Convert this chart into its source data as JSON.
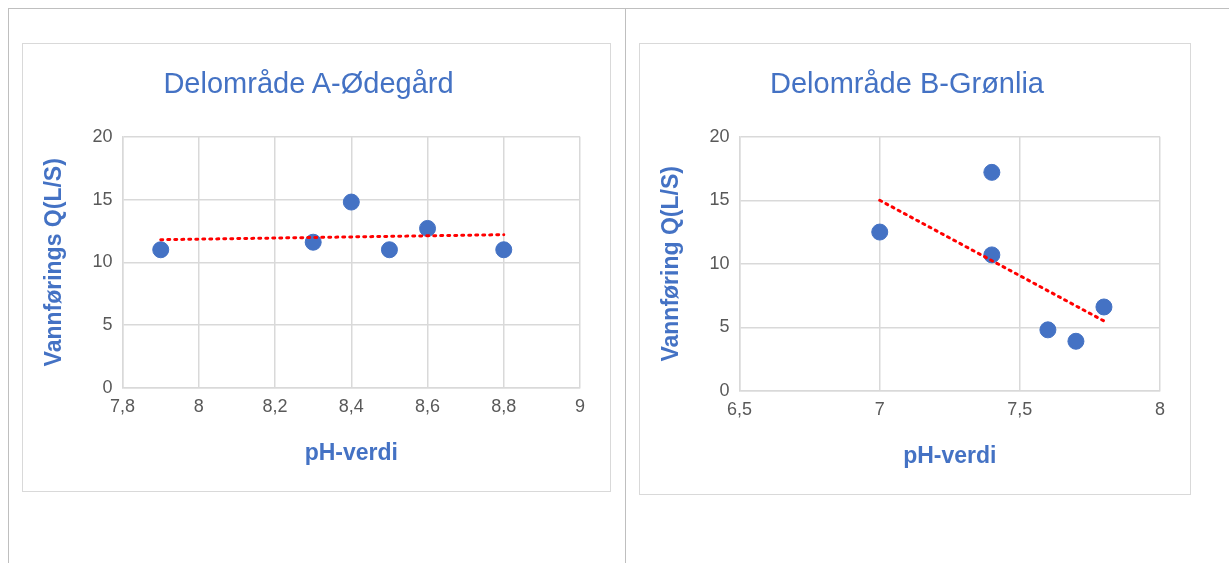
{
  "chart_data": [
    {
      "type": "scatter",
      "title": "Delområde A-Ødegård",
      "xlabel": "pH-verdi",
      "ylabel": "Vannførings Q(L/S)",
      "marker": "circle",
      "grid": true,
      "legend": false,
      "xlim": [
        7.8,
        9
      ],
      "xticks": [
        {
          "value": 7.8,
          "label": "7,8"
        },
        8,
        {
          "value": 8.2,
          "label": "8,2"
        },
        {
          "value": 8.4,
          "label": "8,4"
        },
        {
          "value": 8.6,
          "label": "8,6"
        },
        {
          "value": 8.8,
          "label": "8,8"
        },
        9
      ],
      "ylim": [
        0,
        20
      ],
      "yticks": [
        0,
        5,
        10,
        15,
        20
      ],
      "series": [
        {
          "color": "#4472c4",
          "x": [
            7.9,
            8.3,
            8.4,
            8.5,
            8.6,
            8.8
          ],
          "values": [
            11.0,
            11.6,
            14.8,
            11.0,
            12.7,
            11.0
          ]
        },
        {
          "type": "line",
          "color": "#ff0000",
          "line_style": "dotted",
          "marker": "none",
          "x": [
            7.9,
            8.8
          ],
          "values": [
            11.8,
            12.2
          ]
        }
      ]
    },
    {
      "type": "scatter",
      "title": "Delområde B-Grønlia",
      "xlabel": "pH-verdi",
      "ylabel": "Vannføring Q(L/S)",
      "marker": "circle",
      "grid": true,
      "legend": false,
      "xlim": [
        6.5,
        8
      ],
      "xticks": [
        {
          "value": 6.5,
          "label": "6,5"
        },
        7,
        {
          "value": 7.5,
          "label": "7,5"
        },
        8
      ],
      "ylim": [
        0,
        20
      ],
      "yticks": [
        0,
        5,
        10,
        15,
        20
      ],
      "series": [
        {
          "color": "#4472c4",
          "x": [
            7,
            7.4,
            7.4,
            7.6,
            7.7,
            7.8
          ],
          "values": [
            12.5,
            17.2,
            10.7,
            4.8,
            3.9,
            6.6
          ]
        },
        {
          "type": "line",
          "color": "#ff0000",
          "line_style": "dotted",
          "marker": "none",
          "x": [
            7,
            7.8
          ],
          "values": [
            15.0,
            5.5
          ]
        }
      ]
    }
  ]
}
